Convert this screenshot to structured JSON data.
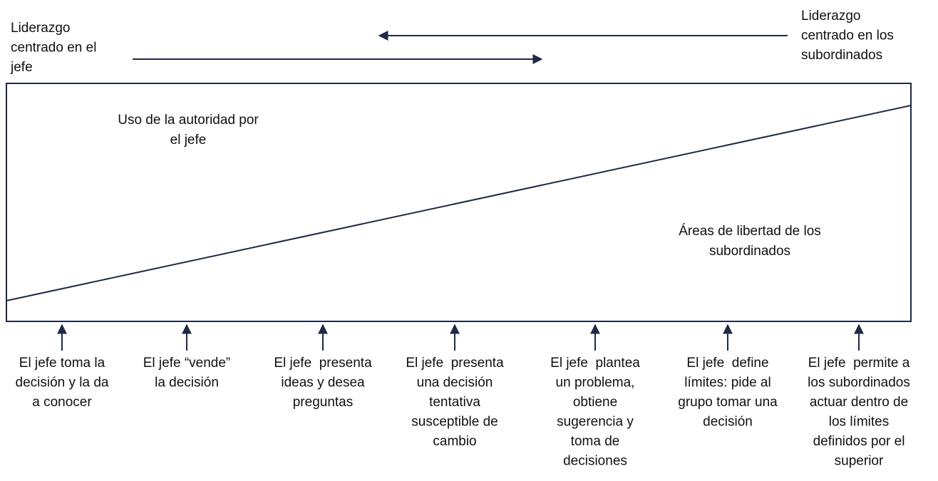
{
  "header": {
    "left_label": [
      "Liderazgo",
      "centrado en el",
      "jefe"
    ],
    "right_label": [
      "Liderazgo",
      "centrado en los",
      "subordinados"
    ]
  },
  "regions": {
    "authority": [
      "Uso de la autoridad por",
      "el jefe"
    ],
    "freedom": [
      "Áreas de libertad de los",
      "subordinados"
    ]
  },
  "behaviors": [
    [
      "El jefe toma la",
      "decisión y la da",
      "a conocer"
    ],
    [
      "El jefe “vende”",
      "la decisión"
    ],
    [
      "El jefe  presenta",
      "ideas y desea",
      "preguntas"
    ],
    [
      "El jefe  presenta",
      "una decisión",
      "tentativa",
      "susceptible de",
      "cambio"
    ],
    [
      "El jefe  plantea",
      "un problema,",
      "obtiene",
      "sugerencia y",
      "toma de",
      "decisiones"
    ],
    [
      "El jefe  define",
      "límites: pide al",
      "grupo tomar una",
      "decisión"
    ],
    [
      "El jefe  permite a",
      "los subordinados",
      "actuar dentro de",
      "los límites",
      "definidos por el",
      "superior"
    ]
  ]
}
